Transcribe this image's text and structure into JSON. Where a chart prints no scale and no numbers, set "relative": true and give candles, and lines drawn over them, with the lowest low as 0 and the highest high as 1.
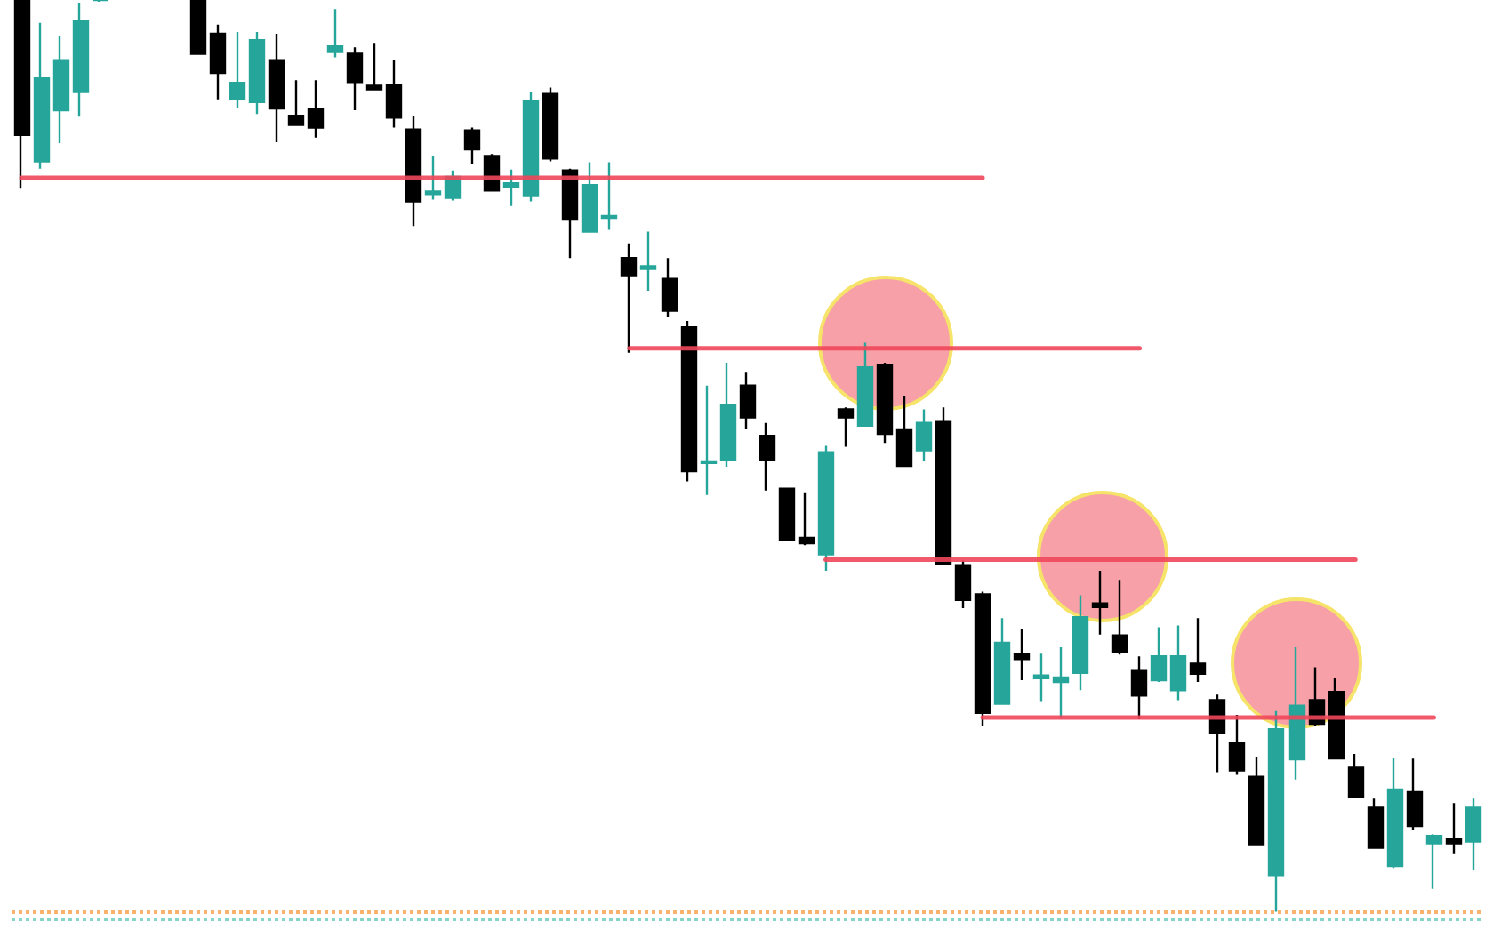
{
  "chart_data": {
    "type": "candlestick",
    "relative": true,
    "categories": [
      null,
      null,
      null,
      null,
      null,
      null,
      null,
      null,
      null,
      null,
      null,
      null,
      null,
      null,
      null,
      null,
      null,
      null,
      null,
      null,
      null,
      null,
      null,
      null,
      null,
      null,
      null,
      null,
      null,
      null,
      null,
      null,
      null,
      null,
      null,
      null,
      null,
      null,
      null,
      null,
      null,
      null,
      null,
      null,
      null,
      null,
      null,
      null,
      null,
      null,
      null,
      null,
      null,
      null,
      null,
      null,
      null,
      null,
      null,
      null,
      null,
      null,
      null,
      null,
      null,
      null,
      null,
      null,
      null,
      null,
      null,
      null,
      null,
      null,
      null
    ],
    "ohlc": [
      [
        1,
        1,
        0.793,
        0.852
      ],
      [
        0.823,
        0.975,
        0.815,
        0.914
      ],
      [
        0.879,
        0.96,
        0.843,
        0.934
      ],
      [
        0.899,
        0.997,
        0.872,
        0.977
      ],
      [
        1,
        1,
        0.998,
        1
      ],
      null,
      null,
      null,
      null,
      [
        1,
        1,
        0.941,
        0.941
      ],
      [
        0.963,
        0.973,
        0.891,
        0.92
      ],
      [
        0.891,
        0.965,
        0.881,
        0.909
      ],
      [
        0.888,
        0.965,
        0.875,
        0.956
      ],
      [
        0.934,
        0.963,
        0.844,
        0.881
      ],
      [
        0.873,
        0.912,
        0.862,
        0.863
      ],
      [
        0.88,
        0.912,
        0.849,
        0.86
      ],
      [
        0.943,
        0.99,
        0.937,
        0.949
      ],
      [
        0.941,
        0.948,
        0.879,
        0.91
      ],
      [
        0.906,
        0.953,
        0.902,
        0.902
      ],
      [
        0.907,
        0.934,
        0.86,
        0.871
      ],
      [
        0.858,
        0.873,
        0.752,
        0.779
      ],
      [
        0.787,
        0.829,
        0.781,
        0.79
      ],
      [
        0.783,
        0.813,
        0.78,
        0.806
      ],
      [
        0.857,
        0.86,
        0.82,
        0.836
      ],
      [
        0.829,
        0.831,
        0.791,
        0.791
      ],
      [
        0.795,
        0.814,
        0.774,
        0.799
      ],
      [
        0.785,
        0.899,
        0.779,
        0.889
      ],
      [
        0.897,
        0.904,
        0.823,
        0.826
      ],
      [
        0.813,
        0.815,
        0.717,
        0.759
      ],
      [
        0.746,
        0.822,
        0.745,
        0.797
      ],
      [
        0.761,
        0.822,
        0.748,
        0.763
      ],
      [
        0.717,
        0.733,
        0.613,
        0.698
      ],
      [
        0.705,
        0.746,
        0.681,
        0.708
      ],
      [
        0.694,
        0.717,
        0.652,
        0.659
      ],
      [
        0.641,
        0.648,
        0.472,
        0.483
      ],
      [
        0.492,
        0.577,
        0.457,
        0.494
      ],
      [
        0.496,
        0.602,
        0.488,
        0.556
      ],
      [
        0.577,
        0.592,
        0.53,
        0.542
      ],
      [
        0.522,
        0.536,
        0.462,
        0.496
      ],
      [
        0.464,
        0.465,
        0.408,
        0.408
      ],
      [
        0.41,
        0.46,
        0.402,
        0.404
      ],
      [
        0.392,
        0.511,
        0.374,
        0.504
      ],
      [
        0.551,
        0.553,
        0.51,
        0.542
      ],
      [
        0.533,
        0.624,
        0.533,
        0.597
      ],
      [
        0.6,
        0.602,
        0.514,
        0.524
      ],
      [
        0.529,
        0.566,
        0.489,
        0.489
      ],
      [
        0.506,
        0.551,
        0.494,
        0.536
      ],
      [
        0.538,
        0.553,
        0.381,
        0.381
      ],
      [
        0.38,
        0.385,
        0.333,
        0.342
      ],
      [
        0.348,
        0.351,
        0.204,
        0.218
      ],
      [
        0.228,
        0.322,
        0.228,
        0.295
      ],
      [
        0.283,
        0.31,
        0.254,
        0.277
      ],
      [
        0.256,
        0.283,
        0.231,
        0.259
      ],
      [
        0.252,
        0.29,
        0.213,
        0.257
      ],
      [
        0.262,
        0.347,
        0.243,
        0.323
      ],
      [
        0.338,
        0.374,
        0.304,
        0.334
      ],
      [
        0.303,
        0.364,
        0.282,
        0.285
      ],
      [
        0.264,
        0.28,
        0.211,
        0.237
      ],
      [
        0.254,
        0.312,
        0.252,
        0.28
      ],
      [
        0.243,
        0.314,
        0.232,
        0.28
      ],
      [
        0.272,
        0.322,
        0.252,
        0.261
      ],
      [
        0.232,
        0.238,
        0.153,
        0.196
      ],
      [
        0.185,
        0.216,
        0.15,
        0.155
      ],
      [
        0.148,
        0.17,
        0.074,
        0.074
      ],
      [
        0.04,
        0.22,
        0.0,
        0.2
      ],
      [
        0.167,
        0.29,
        0.145,
        0.226
      ],
      [
        0.232,
        0.268,
        0.204,
        0.206
      ],
      [
        0.241,
        0.256,
        0.168,
        0.168
      ],
      [
        0.158,
        0.173,
        0.126,
        0.126
      ],
      [
        0.114,
        0.124,
        0.069,
        0.07
      ],
      [
        0.05,
        0.169,
        0.048,
        0.134
      ],
      [
        0.131,
        0.168,
        0.09,
        0.094
      ],
      [
        0.075,
        0.085,
        0.025,
        0.083
      ],
      [
        0.08,
        0.119,
        0.064,
        0.075
      ],
      [
        0.077,
        0.124,
        0.046,
        0.114
      ]
    ],
    "colors": [
      "#000000",
      "#26a69a",
      "#26a69a",
      "#26a69a",
      "#26a69a",
      null,
      null,
      null,
      null,
      "#000000",
      "#000000",
      "#26a69a",
      "#26a69a",
      "#000000",
      "#000000",
      "#000000",
      "#26a69a",
      "#000000",
      "#000000",
      "#000000",
      "#000000",
      "#26a69a",
      "#26a69a",
      "#000000",
      "#000000",
      "#26a69a",
      "#26a69a",
      "#000000",
      "#000000",
      "#26a69a",
      "#26a69a",
      "#000000",
      "#26a69a",
      "#000000",
      "#000000",
      "#26a69a",
      "#26a69a",
      "#000000",
      "#000000",
      "#000000",
      "#000000",
      "#26a69a",
      "#000000",
      "#26a69a",
      "#000000",
      "#000000",
      "#26a69a",
      "#000000",
      "#000000",
      "#000000",
      "#26a69a",
      "#000000",
      "#26a69a",
      "#26a69a",
      "#26a69a",
      "#000000",
      "#000000",
      "#000000",
      "#26a69a",
      "#26a69a",
      "#000000",
      "#000000",
      "#000000",
      "#000000",
      "#26a69a",
      "#26a69a",
      "#000000",
      "#000000",
      "#000000",
      "#000000",
      "#26a69a",
      "#000000",
      "#26a69a",
      "#000000",
      "#26a69a"
    ],
    "series": [
      {
        "type": "line",
        "color": "#f0465a",
        "values": [
          0.805,
          0.805,
          0.805,
          0.805,
          0.805,
          0.805,
          0.805,
          0.805,
          0.805,
          0.805,
          0.805,
          0.805,
          0.805,
          0.805,
          0.805,
          0.805,
          0.805,
          0.805,
          0.805,
          0.805,
          0.805,
          0.805,
          0.805,
          0.805,
          0.805,
          0.805,
          0.805,
          0.805,
          0.805,
          0.805,
          0.805,
          0.805,
          0.805,
          0.805,
          0.805,
          0.805,
          0.805,
          0.805,
          0.805,
          0.805,
          0.805,
          0.805,
          0.805,
          0.805,
          0.805,
          0.805,
          0.805,
          0.805,
          0.805,
          0.805,
          null,
          null,
          null,
          null,
          null,
          null,
          null,
          null,
          null,
          null,
          null,
          null,
          null,
          null,
          null,
          null,
          null,
          null,
          null,
          null,
          null,
          null,
          null,
          null,
          null
        ]
      },
      {
        "type": "line",
        "color": "#f0465a",
        "values": [
          null,
          null,
          null,
          null,
          null,
          null,
          null,
          null,
          null,
          null,
          null,
          null,
          null,
          null,
          null,
          null,
          null,
          null,
          null,
          null,
          null,
          null,
          null,
          null,
          null,
          null,
          null,
          null,
          null,
          null,
          null,
          0.618,
          0.618,
          0.618,
          0.618,
          0.618,
          0.618,
          0.618,
          0.618,
          0.618,
          0.618,
          0.618,
          0.618,
          0.618,
          0.618,
          0.618,
          0.618,
          0.618,
          0.618,
          0.618,
          0.618,
          0.618,
          0.618,
          0.618,
          0.618,
          0.618,
          0.618,
          0.618,
          null,
          null,
          null,
          null,
          null,
          null,
          null,
          null,
          null,
          null,
          null,
          null,
          null,
          null,
          null,
          null,
          null
        ]
      },
      {
        "type": "line",
        "color": "#f0465a",
        "values": [
          null,
          null,
          null,
          null,
          null,
          null,
          null,
          null,
          null,
          null,
          null,
          null,
          null,
          null,
          null,
          null,
          null,
          null,
          null,
          null,
          null,
          null,
          null,
          null,
          null,
          null,
          null,
          null,
          null,
          null,
          null,
          null,
          null,
          null,
          null,
          null,
          null,
          null,
          null,
          null,
          null,
          0.386,
          0.386,
          0.386,
          0.386,
          0.386,
          0.386,
          0.386,
          0.386,
          0.386,
          0.386,
          0.386,
          0.386,
          0.386,
          0.386,
          0.386,
          0.386,
          0.386,
          0.386,
          0.386,
          0.386,
          0.386,
          0.386,
          0.386,
          0.386,
          0.386,
          0.386,
          0.386,
          0.386,
          null,
          null,
          null,
          null,
          null,
          null
        ]
      },
      {
        "type": "line",
        "color": "#f0465a",
        "values": [
          null,
          null,
          null,
          null,
          null,
          null,
          null,
          null,
          null,
          null,
          null,
          null,
          null,
          null,
          null,
          null,
          null,
          null,
          null,
          null,
          null,
          null,
          null,
          null,
          null,
          null,
          null,
          null,
          null,
          null,
          null,
          null,
          null,
          null,
          null,
          null,
          null,
          null,
          null,
          null,
          null,
          null,
          null,
          null,
          null,
          null,
          null,
          null,
          null,
          0.213,
          0.213,
          0.213,
          0.213,
          0.213,
          0.213,
          0.213,
          0.213,
          0.213,
          0.213,
          0.213,
          0.213,
          0.213,
          0.213,
          0.213,
          0.213,
          0.213,
          0.213,
          0.213,
          0.213,
          0.213,
          0.213,
          0.213,
          0.213,
          null,
          null
        ]
      }
    ],
    "ref_lines": [
      {
        "axis": "y",
        "value": 0,
        "color": "#fbb26e",
        "line_style": "dotted"
      },
      {
        "axis": "y",
        "value": -0.008,
        "color": "#86d3c8",
        "line_style": "dotted"
      }
    ],
    "marker": "none",
    "line_style": "solid"
  }
}
